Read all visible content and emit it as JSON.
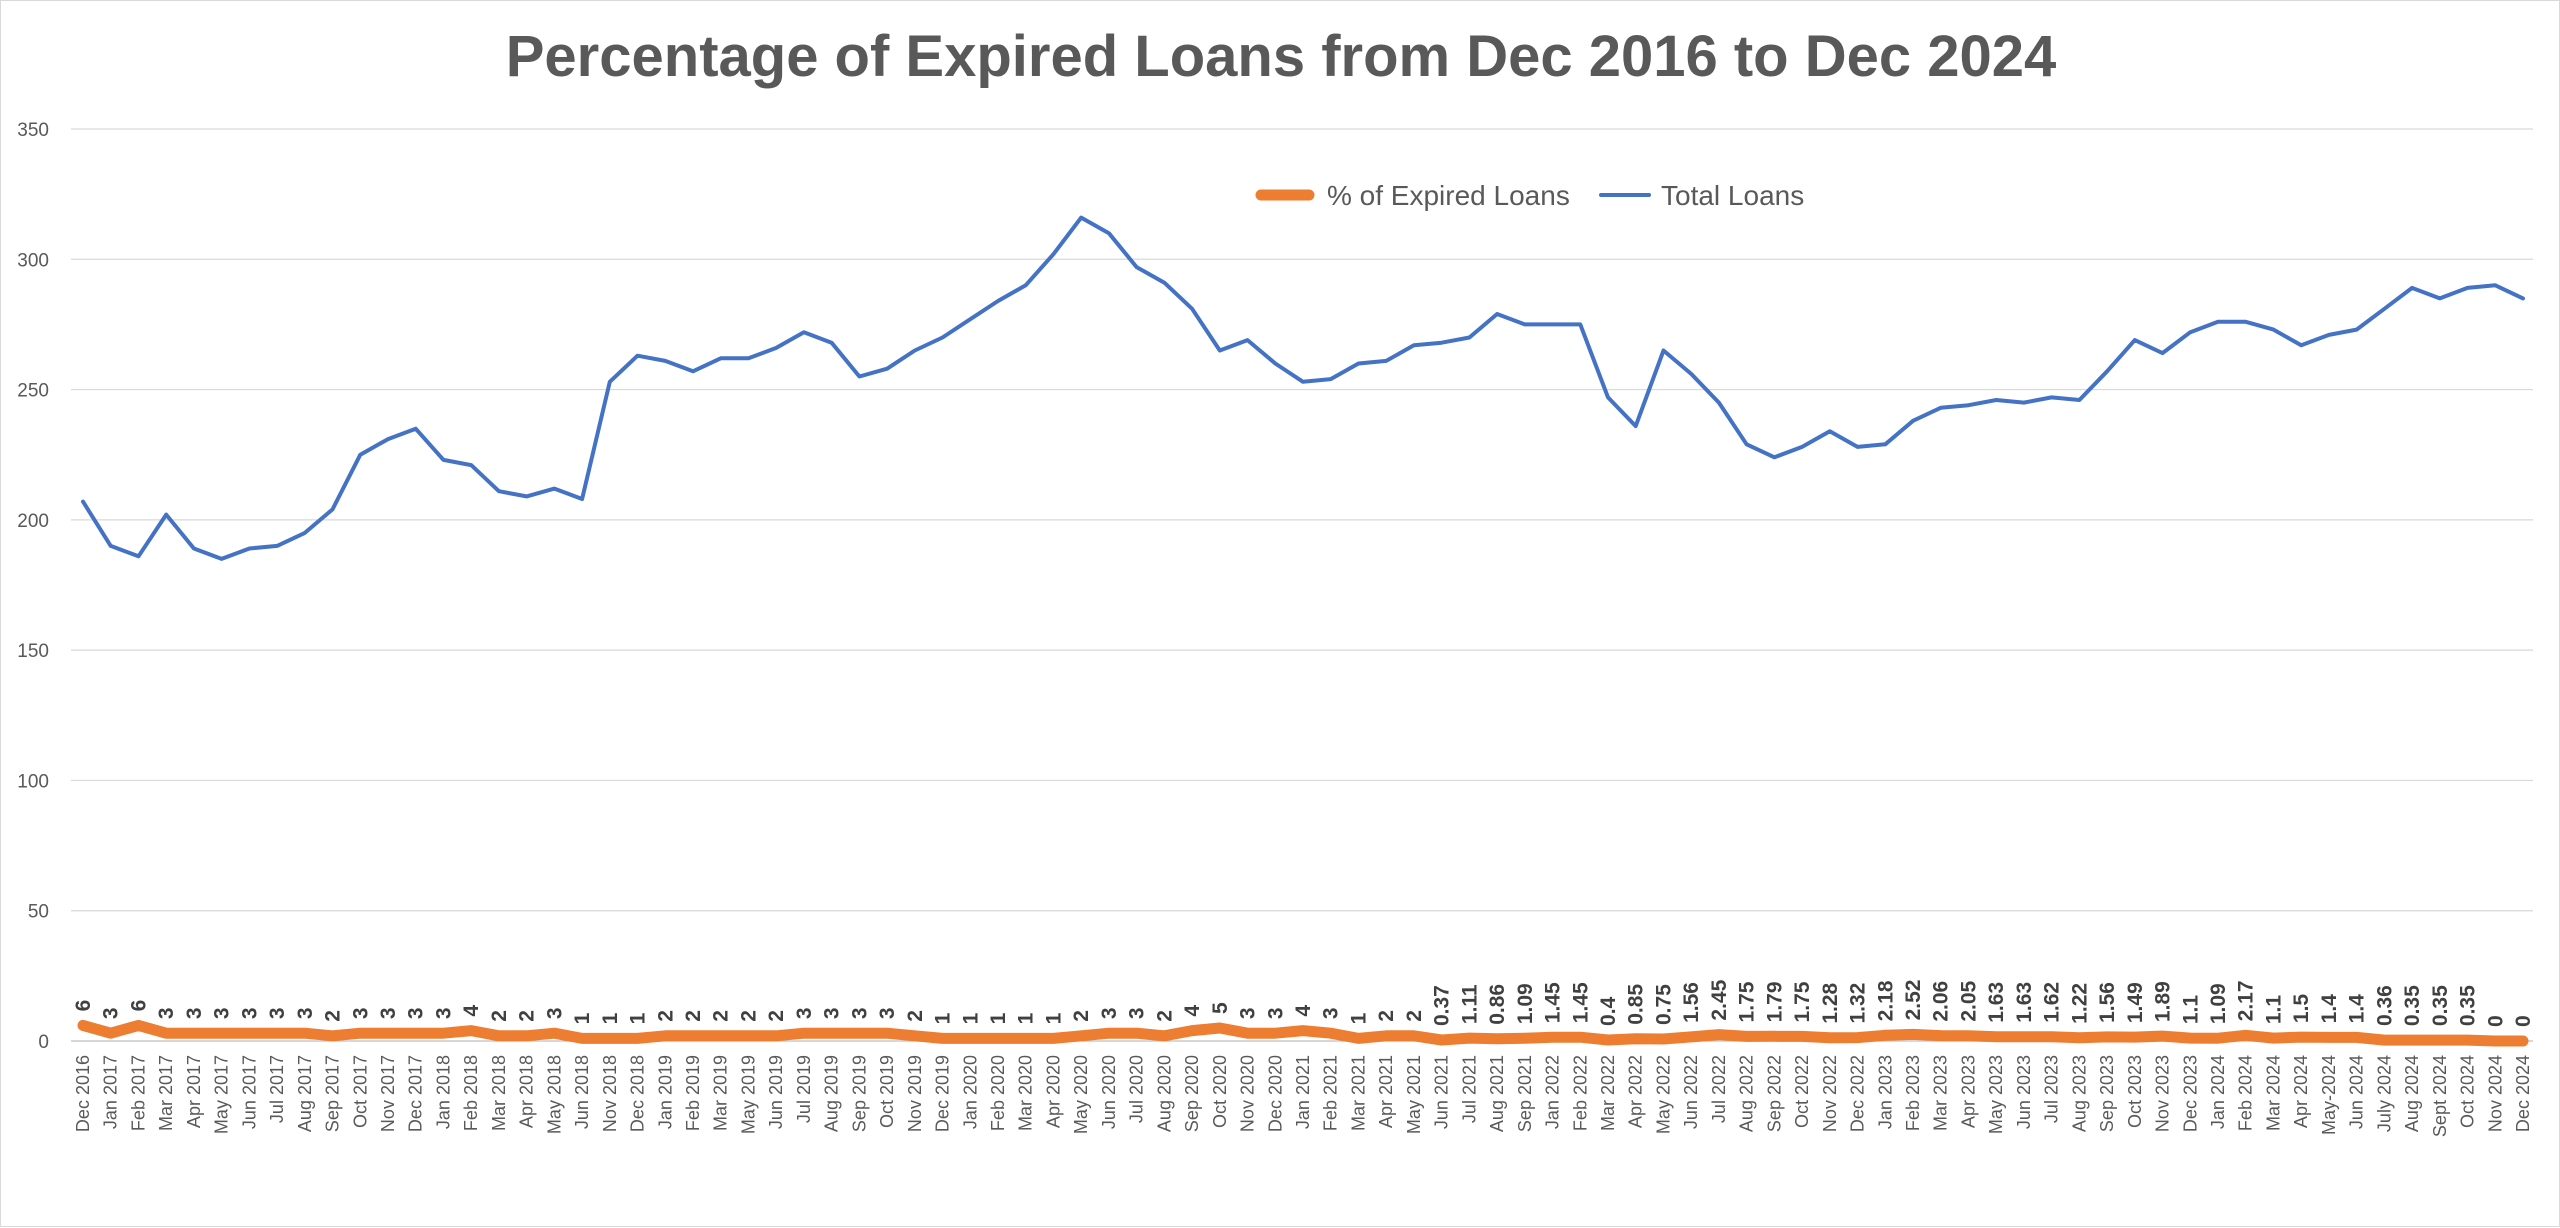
{
  "chart_data": {
    "type": "line",
    "title": "Percentage of Expired Loans from Dec 2016 to Dec 2024",
    "xlabel": "",
    "ylabel": "",
    "ylim": [
      0,
      350
    ],
    "yticks": [
      0,
      50,
      100,
      150,
      200,
      250,
      300,
      350
    ],
    "grid": true,
    "legend_position": "top-center",
    "categories": [
      "Dec 2016",
      "Jan 2017",
      "Feb 2017",
      "Mar 2017",
      "Apr 2017",
      "May 2017",
      "Jun 2017",
      "Jul 2017",
      "Aug 2017",
      "Sep 2017",
      "Oct 2017",
      "Nov 2017",
      "Dec 2017",
      "Jan 2018",
      "Feb 2018",
      "Mar 2018",
      "Apr 2018",
      "May 2018",
      "Jun 2018",
      "Nov 2018",
      "Dec 2018",
      "Jan 2019",
      "Feb 2019",
      "Mar 2019",
      "May 2019",
      "Jun 2019",
      "Jul 2019",
      "Aug 2019",
      "Sep 2019",
      "Oct 2019",
      "Nov 2019",
      "Dec 2019",
      "Jan 2020",
      "Feb 2020",
      "Mar 2020",
      "Apr 2020",
      "May 2020",
      "Jun 2020",
      "Jul 2020",
      "Aug 2020",
      "Sep 2020",
      "Oct 2020",
      "Nov 2020",
      "Dec 2020",
      "Jan 2021",
      "Feb 2021",
      "Mar 2021",
      "Apr 2021",
      "May 2021",
      "Jun 2021",
      "Jul 2021",
      "Aug 2021",
      "Sep 2021",
      "Jan 2022",
      "Feb 2022",
      "Mar 2022",
      "Apr 2022",
      "May 2022",
      "Jun 2022",
      "Jul 2022",
      "Aug 2022",
      "Sep 2022",
      "Oct 2022",
      "Nov 2022",
      "Dec 2022",
      "Jan 2023",
      "Feb 2023",
      "Mar 2023",
      "Apr 2023",
      "May 2023",
      "Jun 2023",
      "Jul 2023",
      "Aug 2023",
      "Sep 2023",
      "Oct 2023",
      "Nov 2023",
      "Dec 2023",
      "Jan 2024",
      "Feb 2024",
      "Mar 2024",
      "Apr 2024",
      "May-2024",
      "Jun 2024",
      "July 2024",
      "Aug 2024",
      "Sept 2024",
      "Oct 2024",
      "Nov 2024",
      "Dec 2024"
    ],
    "series": [
      {
        "name": "% of Expired Loans",
        "color": "#ED7D31",
        "values": [
          6,
          3,
          6,
          3,
          3,
          3,
          3,
          3,
          3,
          2,
          3,
          3,
          3,
          3,
          4,
          2,
          2,
          3,
          1,
          1,
          1,
          2,
          2,
          2,
          2,
          2,
          3,
          3,
          3,
          3,
          2,
          1,
          1,
          1,
          1,
          1,
          2,
          3,
          3,
          2,
          4,
          5,
          3,
          3,
          4,
          3,
          1,
          2,
          2,
          0.37,
          1.11,
          0.86,
          1.09,
          1.45,
          1.45,
          0.4,
          0.85,
          0.75,
          1.56,
          2.45,
          1.75,
          1.79,
          1.75,
          1.28,
          1.32,
          2.18,
          2.52,
          2.06,
          2.05,
          1.63,
          1.63,
          1.62,
          1.22,
          1.56,
          1.49,
          1.89,
          1.1,
          1.09,
          2.17,
          1.1,
          1.5,
          1.4,
          1.4,
          0.36,
          0.35,
          0.35,
          0.35,
          0,
          0
        ],
        "data_labels": [
          "6",
          "3",
          "6",
          "3",
          "3",
          "3",
          "3",
          "3",
          "3",
          "2",
          "3",
          "3",
          "3",
          "3",
          "4",
          "2",
          "2",
          "3",
          "1",
          "1",
          "1",
          "2",
          "2",
          "2",
          "2",
          "2",
          "3",
          "3",
          "3",
          "3",
          "2",
          "1",
          "1",
          "1",
          "1",
          "1",
          "2",
          "3",
          "3",
          "2",
          "4",
          "5",
          "3",
          "3",
          "4",
          "3",
          "1",
          "2",
          "2",
          "0.37",
          "1.11",
          "0.86",
          "1.09",
          "1.45",
          "1.45",
          "0.4",
          "0.85",
          "0.75",
          "1.56",
          "2.45",
          "1.75",
          "1.79",
          "1.75",
          "1.28",
          "1.32",
          "2.18",
          "2.52",
          "2.06",
          "2.05",
          "1.63",
          "1.63",
          "1.62",
          "1.22",
          "1.56",
          "1.49",
          "1.89",
          "1.1",
          "1.09",
          "2.17",
          "1.1",
          "1.5",
          "1.4",
          "1.4",
          "0.36",
          "0.35",
          "0.35",
          "0.35",
          "0",
          "0"
        ]
      },
      {
        "name": "Total Loans",
        "color": "#4472C4",
        "values": [
          207,
          190,
          186,
          202,
          189,
          185,
          189,
          190,
          195,
          204,
          225,
          231,
          235,
          223,
          221,
          211,
          209,
          212,
          208,
          253,
          263,
          261,
          257,
          262,
          262,
          266,
          272,
          268,
          255,
          258,
          265,
          270,
          277,
          284,
          290,
          302,
          316,
          310,
          297,
          291,
          281,
          265,
          269,
          260,
          253,
          254,
          260,
          261,
          267,
          268,
          270,
          279,
          275,
          275,
          275,
          247,
          236,
          265,
          256,
          245,
          229,
          224,
          228,
          234,
          228,
          229,
          238,
          243,
          244,
          246,
          245,
          247,
          246,
          257,
          269,
          264,
          272,
          276,
          276,
          273,
          267,
          271,
          273,
          281,
          289,
          285,
          289,
          290,
          285
        ]
      }
    ]
  }
}
